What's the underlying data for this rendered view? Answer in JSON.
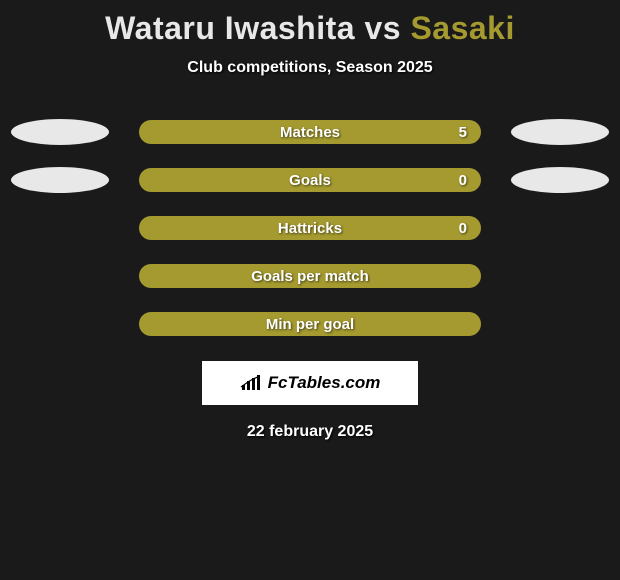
{
  "title": {
    "player1": "Wataru Iwashita",
    "vs": "vs",
    "player2": "Sasaki",
    "player1_color": "#e8e8e8",
    "vs_color": "#e8e8e8",
    "player2_color": "#a59a2f"
  },
  "subtitle": "Club competitions, Season 2025",
  "ellipse_colors": {
    "left": "#e8e8e8",
    "right": "#e8e8e8"
  },
  "bars": [
    {
      "label": "Matches",
      "value": "5",
      "color": "#a59a2f",
      "show_left_ellipse": true,
      "show_right_ellipse": true,
      "show_value": true
    },
    {
      "label": "Goals",
      "value": "0",
      "color": "#a59a2f",
      "show_left_ellipse": true,
      "show_right_ellipse": true,
      "show_value": true
    },
    {
      "label": "Hattricks",
      "value": "0",
      "color": "#a59a2f",
      "show_left_ellipse": false,
      "show_right_ellipse": false,
      "show_value": true
    },
    {
      "label": "Goals per match",
      "value": "",
      "color": "#a59a2f",
      "show_left_ellipse": false,
      "show_right_ellipse": false,
      "show_value": false
    },
    {
      "label": "Min per goal",
      "value": "",
      "color": "#a59a2f",
      "show_left_ellipse": false,
      "show_right_ellipse": false,
      "show_value": false
    }
  ],
  "logo": {
    "text": "FcTables.com",
    "background": "#ffffff",
    "text_color": "#000000"
  },
  "date": "22 february 2025",
  "background_color": "#1a1a1a"
}
